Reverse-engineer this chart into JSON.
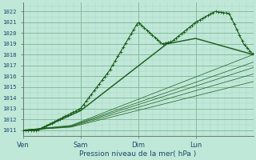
{
  "xlabel": "Pression niveau de la mer( hPa )",
  "bg_color": "#c0e8d8",
  "grid_color_minor": "#a0ccb8",
  "grid_color_major": "#80b898",
  "line_color": "#1a5c1a",
  "ylim": [
    1010.5,
    1022.8
  ],
  "yticks": [
    1011,
    1012,
    1013,
    1014,
    1015,
    1016,
    1017,
    1018,
    1019,
    1020,
    1021,
    1022
  ],
  "x_labels": [
    "Ven",
    "Sam",
    "Dim",
    "Lun"
  ],
  "x_ticks": [
    0,
    24,
    48,
    72
  ],
  "xlim": [
    0,
    96
  ]
}
